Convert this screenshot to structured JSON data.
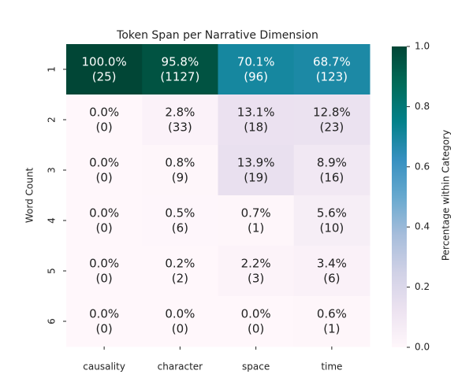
{
  "chart_data": {
    "type": "heatmap",
    "title": "Token Span per Narrative Dimension",
    "x_categories": [
      "causality",
      "character",
      "space",
      "time"
    ],
    "y_categories": [
      "1",
      "2",
      "3",
      "4",
      "5",
      "6"
    ],
    "ylabel": "Word Count",
    "colorbar_label": "Percentage within Category",
    "values": [
      [
        1.0,
        0.958,
        0.701,
        0.687
      ],
      [
        0.0,
        0.028,
        0.131,
        0.128
      ],
      [
        0.0,
        0.008,
        0.139,
        0.089
      ],
      [
        0.0,
        0.005,
        0.007,
        0.056
      ],
      [
        0.0,
        0.002,
        0.022,
        0.034
      ],
      [
        0.0,
        0.0,
        0.0,
        0.006
      ]
    ],
    "value_labels": [
      [
        "100.0%",
        "95.8%",
        "70.1%",
        "68.7%"
      ],
      [
        "0.0%",
        "2.8%",
        "13.1%",
        "12.8%"
      ],
      [
        "0.0%",
        "0.8%",
        "13.9%",
        "8.9%"
      ],
      [
        "0.0%",
        "0.5%",
        "0.7%",
        "5.6%"
      ],
      [
        "0.0%",
        "0.2%",
        "2.2%",
        "3.4%"
      ],
      [
        "0.0%",
        "0.0%",
        "0.0%",
        "0.6%"
      ]
    ],
    "counts": [
      [
        25,
        1127,
        96,
        123
      ],
      [
        0,
        33,
        18,
        23
      ],
      [
        0,
        9,
        19,
        16
      ],
      [
        0,
        6,
        1,
        10
      ],
      [
        0,
        2,
        3,
        6
      ],
      [
        0,
        0,
        0,
        1
      ]
    ],
    "count_labels": [
      [
        "(25)",
        "(1127)",
        "(96)",
        "(123)"
      ],
      [
        "(0)",
        "(33)",
        "(18)",
        "(23)"
      ],
      [
        "(0)",
        "(9)",
        "(19)",
        "(16)"
      ],
      [
        "(0)",
        "(6)",
        "(1)",
        "(10)"
      ],
      [
        "(0)",
        "(2)",
        "(3)",
        "(6)"
      ],
      [
        "(0)",
        "(0)",
        "(0)",
        "(1)"
      ]
    ],
    "clim": [
      0,
      1
    ],
    "cticks": [
      {
        "value": 0,
        "label": "0.0"
      },
      0.2,
      0.4,
      0.6,
      0.8,
      {
        "value": 1,
        "label": "1.0"
      }
    ],
    "colormap": [
      "#fff7fb",
      "#ece2f0",
      "#d0d1e6",
      "#a6bddb",
      "#67a9cf",
      "#3690c0",
      "#02818a",
      "#016c59",
      "#014636"
    ]
  }
}
